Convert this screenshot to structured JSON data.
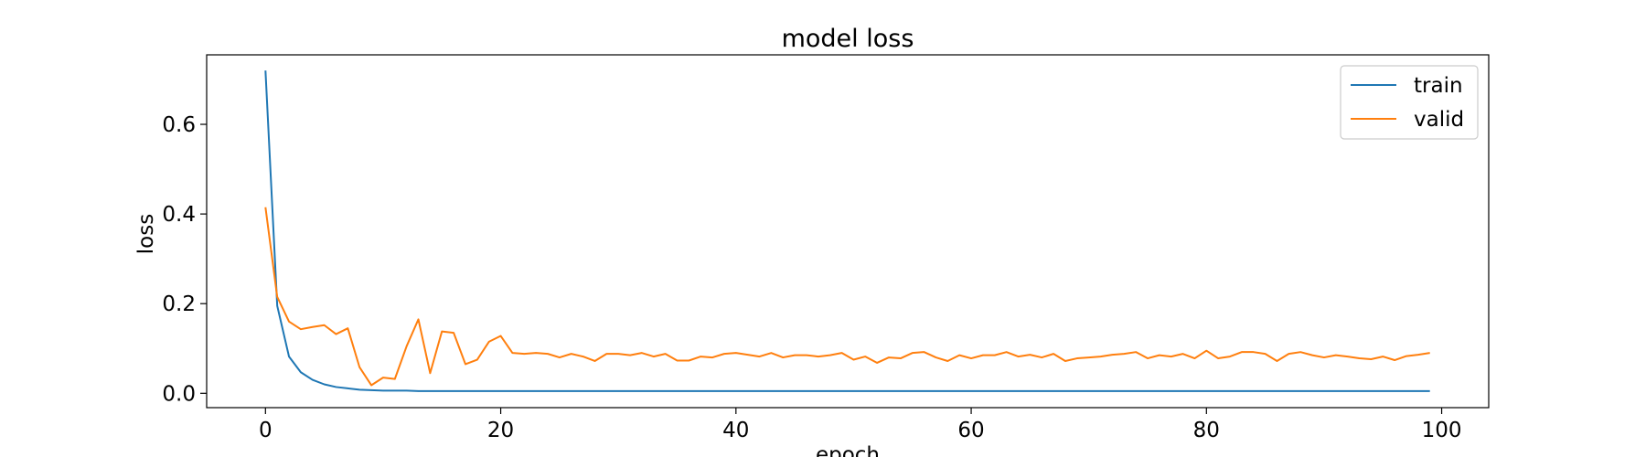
{
  "chart_data": {
    "type": "line",
    "title": "model loss",
    "xlabel": "epoch",
    "ylabel": "loss",
    "xlim": [
      -5,
      104
    ],
    "ylim": [
      -0.032,
      0.755
    ],
    "xticks": [
      0,
      20,
      40,
      60,
      80,
      100
    ],
    "xtick_labels": [
      "0",
      "20",
      "40",
      "60",
      "80",
      "100"
    ],
    "yticks": [
      0.0,
      0.2,
      0.4,
      0.6
    ],
    "ytick_labels": [
      "0.0",
      "0.2",
      "0.4",
      "0.6"
    ],
    "grid": false,
    "legend_position": "top-right",
    "series": [
      {
        "name": "train",
        "color": "#1f77b4",
        "values": [
          0.72,
          0.195,
          0.082,
          0.047,
          0.03,
          0.02,
          0.014,
          0.011,
          0.008,
          0.007,
          0.006,
          0.006,
          0.006,
          0.005,
          0.005,
          0.005,
          0.005,
          0.005,
          0.005,
          0.005,
          0.005,
          0.005,
          0.005,
          0.005,
          0.005,
          0.005,
          0.005,
          0.005,
          0.005,
          0.005,
          0.005,
          0.005,
          0.005,
          0.005,
          0.005,
          0.005,
          0.005,
          0.005,
          0.005,
          0.005,
          0.005,
          0.005,
          0.005,
          0.005,
          0.005,
          0.005,
          0.005,
          0.005,
          0.005,
          0.005,
          0.005,
          0.005,
          0.005,
          0.005,
          0.005,
          0.005,
          0.005,
          0.005,
          0.005,
          0.005,
          0.005,
          0.005,
          0.005,
          0.005,
          0.005,
          0.005,
          0.005,
          0.005,
          0.005,
          0.005,
          0.005,
          0.005,
          0.005,
          0.005,
          0.005,
          0.005,
          0.005,
          0.005,
          0.005,
          0.005,
          0.005,
          0.005,
          0.005,
          0.005,
          0.005,
          0.005,
          0.005,
          0.005,
          0.005,
          0.005,
          0.005,
          0.005,
          0.005,
          0.005,
          0.005,
          0.005,
          0.005,
          0.005,
          0.005,
          0.005
        ]
      },
      {
        "name": "valid",
        "color": "#ff7f0e",
        "values": [
          0.415,
          0.215,
          0.16,
          0.143,
          0.148,
          0.152,
          0.132,
          0.145,
          0.058,
          0.018,
          0.035,
          0.032,
          0.105,
          0.165,
          0.045,
          0.138,
          0.135,
          0.065,
          0.075,
          0.115,
          0.128,
          0.09,
          0.088,
          0.09,
          0.088,
          0.08,
          0.088,
          0.082,
          0.072,
          0.088,
          0.088,
          0.085,
          0.09,
          0.082,
          0.088,
          0.073,
          0.073,
          0.082,
          0.08,
          0.088,
          0.09,
          0.086,
          0.082,
          0.09,
          0.08,
          0.085,
          0.085,
          0.082,
          0.085,
          0.09,
          0.075,
          0.082,
          0.068,
          0.08,
          0.078,
          0.09,
          0.092,
          0.08,
          0.072,
          0.085,
          0.078,
          0.085,
          0.085,
          0.092,
          0.082,
          0.086,
          0.08,
          0.088,
          0.072,
          0.078,
          0.08,
          0.082,
          0.086,
          0.088,
          0.092,
          0.078,
          0.085,
          0.082,
          0.088,
          0.078,
          0.095,
          0.078,
          0.082,
          0.092,
          0.092,
          0.088,
          0.072,
          0.088,
          0.092,
          0.085,
          0.08,
          0.085,
          0.082,
          0.078,
          0.076,
          0.082,
          0.074,
          0.083,
          0.086,
          0.09
        ]
      }
    ]
  }
}
